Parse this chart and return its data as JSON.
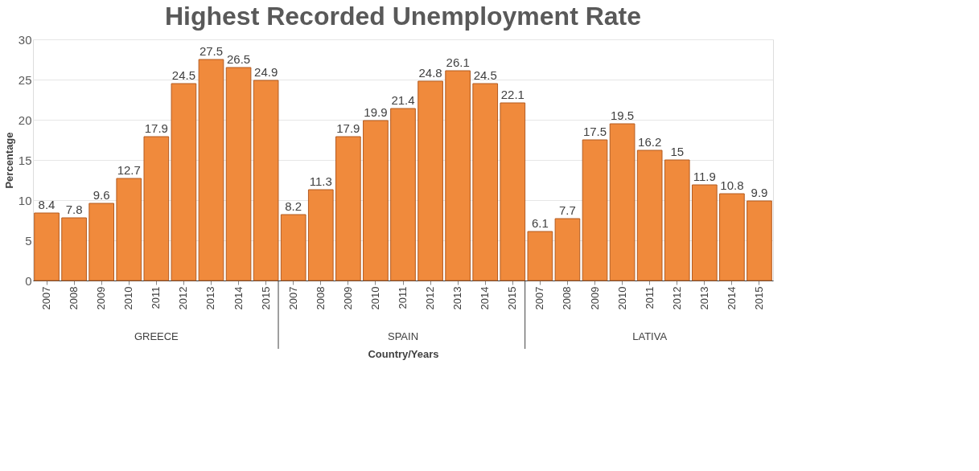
{
  "chart_data": {
    "type": "bar",
    "title": "Highest Recorded Unemployment Rate",
    "xlabel": "Country/Years",
    "ylabel": "Percentage",
    "categories": [
      "2007",
      "2008",
      "2009",
      "2010",
      "2011",
      "2012",
      "2013",
      "2014",
      "2015",
      "2007",
      "2008",
      "2009",
      "2010",
      "2011",
      "2012",
      "2013",
      "2014",
      "2015",
      "2007",
      "2008",
      "2009",
      "2010",
      "2011",
      "2012",
      "2013",
      "2014",
      "2015"
    ],
    "values": [
      8.4,
      7.8,
      9.6,
      12.7,
      17.9,
      24.5,
      27.5,
      26.5,
      24.9,
      8.2,
      11.3,
      17.9,
      19.9,
      21.4,
      24.8,
      26.1,
      24.5,
      22.1,
      6.1,
      7.7,
      17.5,
      19.5,
      16.2,
      15,
      11.9,
      10.8,
      9.9
    ],
    "color": "#f08a3c",
    "ylim": [
      0,
      30
    ],
    "yticks": [
      0,
      5,
      10,
      15,
      20,
      25,
      30
    ],
    "grid": "y",
    "data_labels": true,
    "annotations": [
      "GREECE",
      "SPAIN",
      "LATIVA"
    ]
  }
}
